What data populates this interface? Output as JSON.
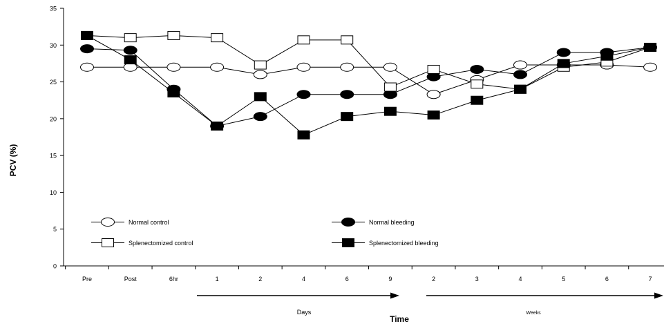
{
  "chart_data": {
    "type": "line",
    "ylabel": "PCV (%)",
    "xlabel": "Time",
    "ylim": [
      0,
      35
    ],
    "yticks": [
      0,
      5,
      10,
      15,
      20,
      25,
      30,
      35
    ],
    "categories": [
      "Pre",
      "Post",
      "6hr",
      "1",
      "2",
      "4",
      "6",
      "9",
      "2",
      "3",
      "4",
      "5",
      "6",
      "7"
    ],
    "period_labels": {
      "days": "Days",
      "weeks": "Weeks"
    },
    "grid": false,
    "series": [
      {
        "name": "Normal control",
        "marker": "circle-open",
        "values": [
          27,
          27,
          27,
          27,
          26,
          27,
          27,
          27,
          23.3,
          25.3,
          27.3,
          27.3,
          27.3,
          27
        ]
      },
      {
        "name": "Normal bleeding",
        "marker": "circle-filled",
        "values": [
          29.5,
          29.3,
          24,
          19,
          20.3,
          23.3,
          23.3,
          23.3,
          25.7,
          26.7,
          26,
          29,
          29,
          29.7
        ]
      },
      {
        "name": "Splenectomized control",
        "marker": "square-open",
        "values": [
          31.3,
          31,
          31.3,
          31,
          27.3,
          30.7,
          30.7,
          24.3,
          26.7,
          24.7,
          24,
          27,
          27.7,
          29.7
        ]
      },
      {
        "name": "Splenectomized bleeding",
        "marker": "square-filled",
        "values": [
          31.3,
          28,
          23.5,
          19,
          23,
          17.8,
          20.3,
          21,
          20.5,
          22.5,
          24,
          27.5,
          28.5,
          29.7
        ]
      }
    ]
  }
}
